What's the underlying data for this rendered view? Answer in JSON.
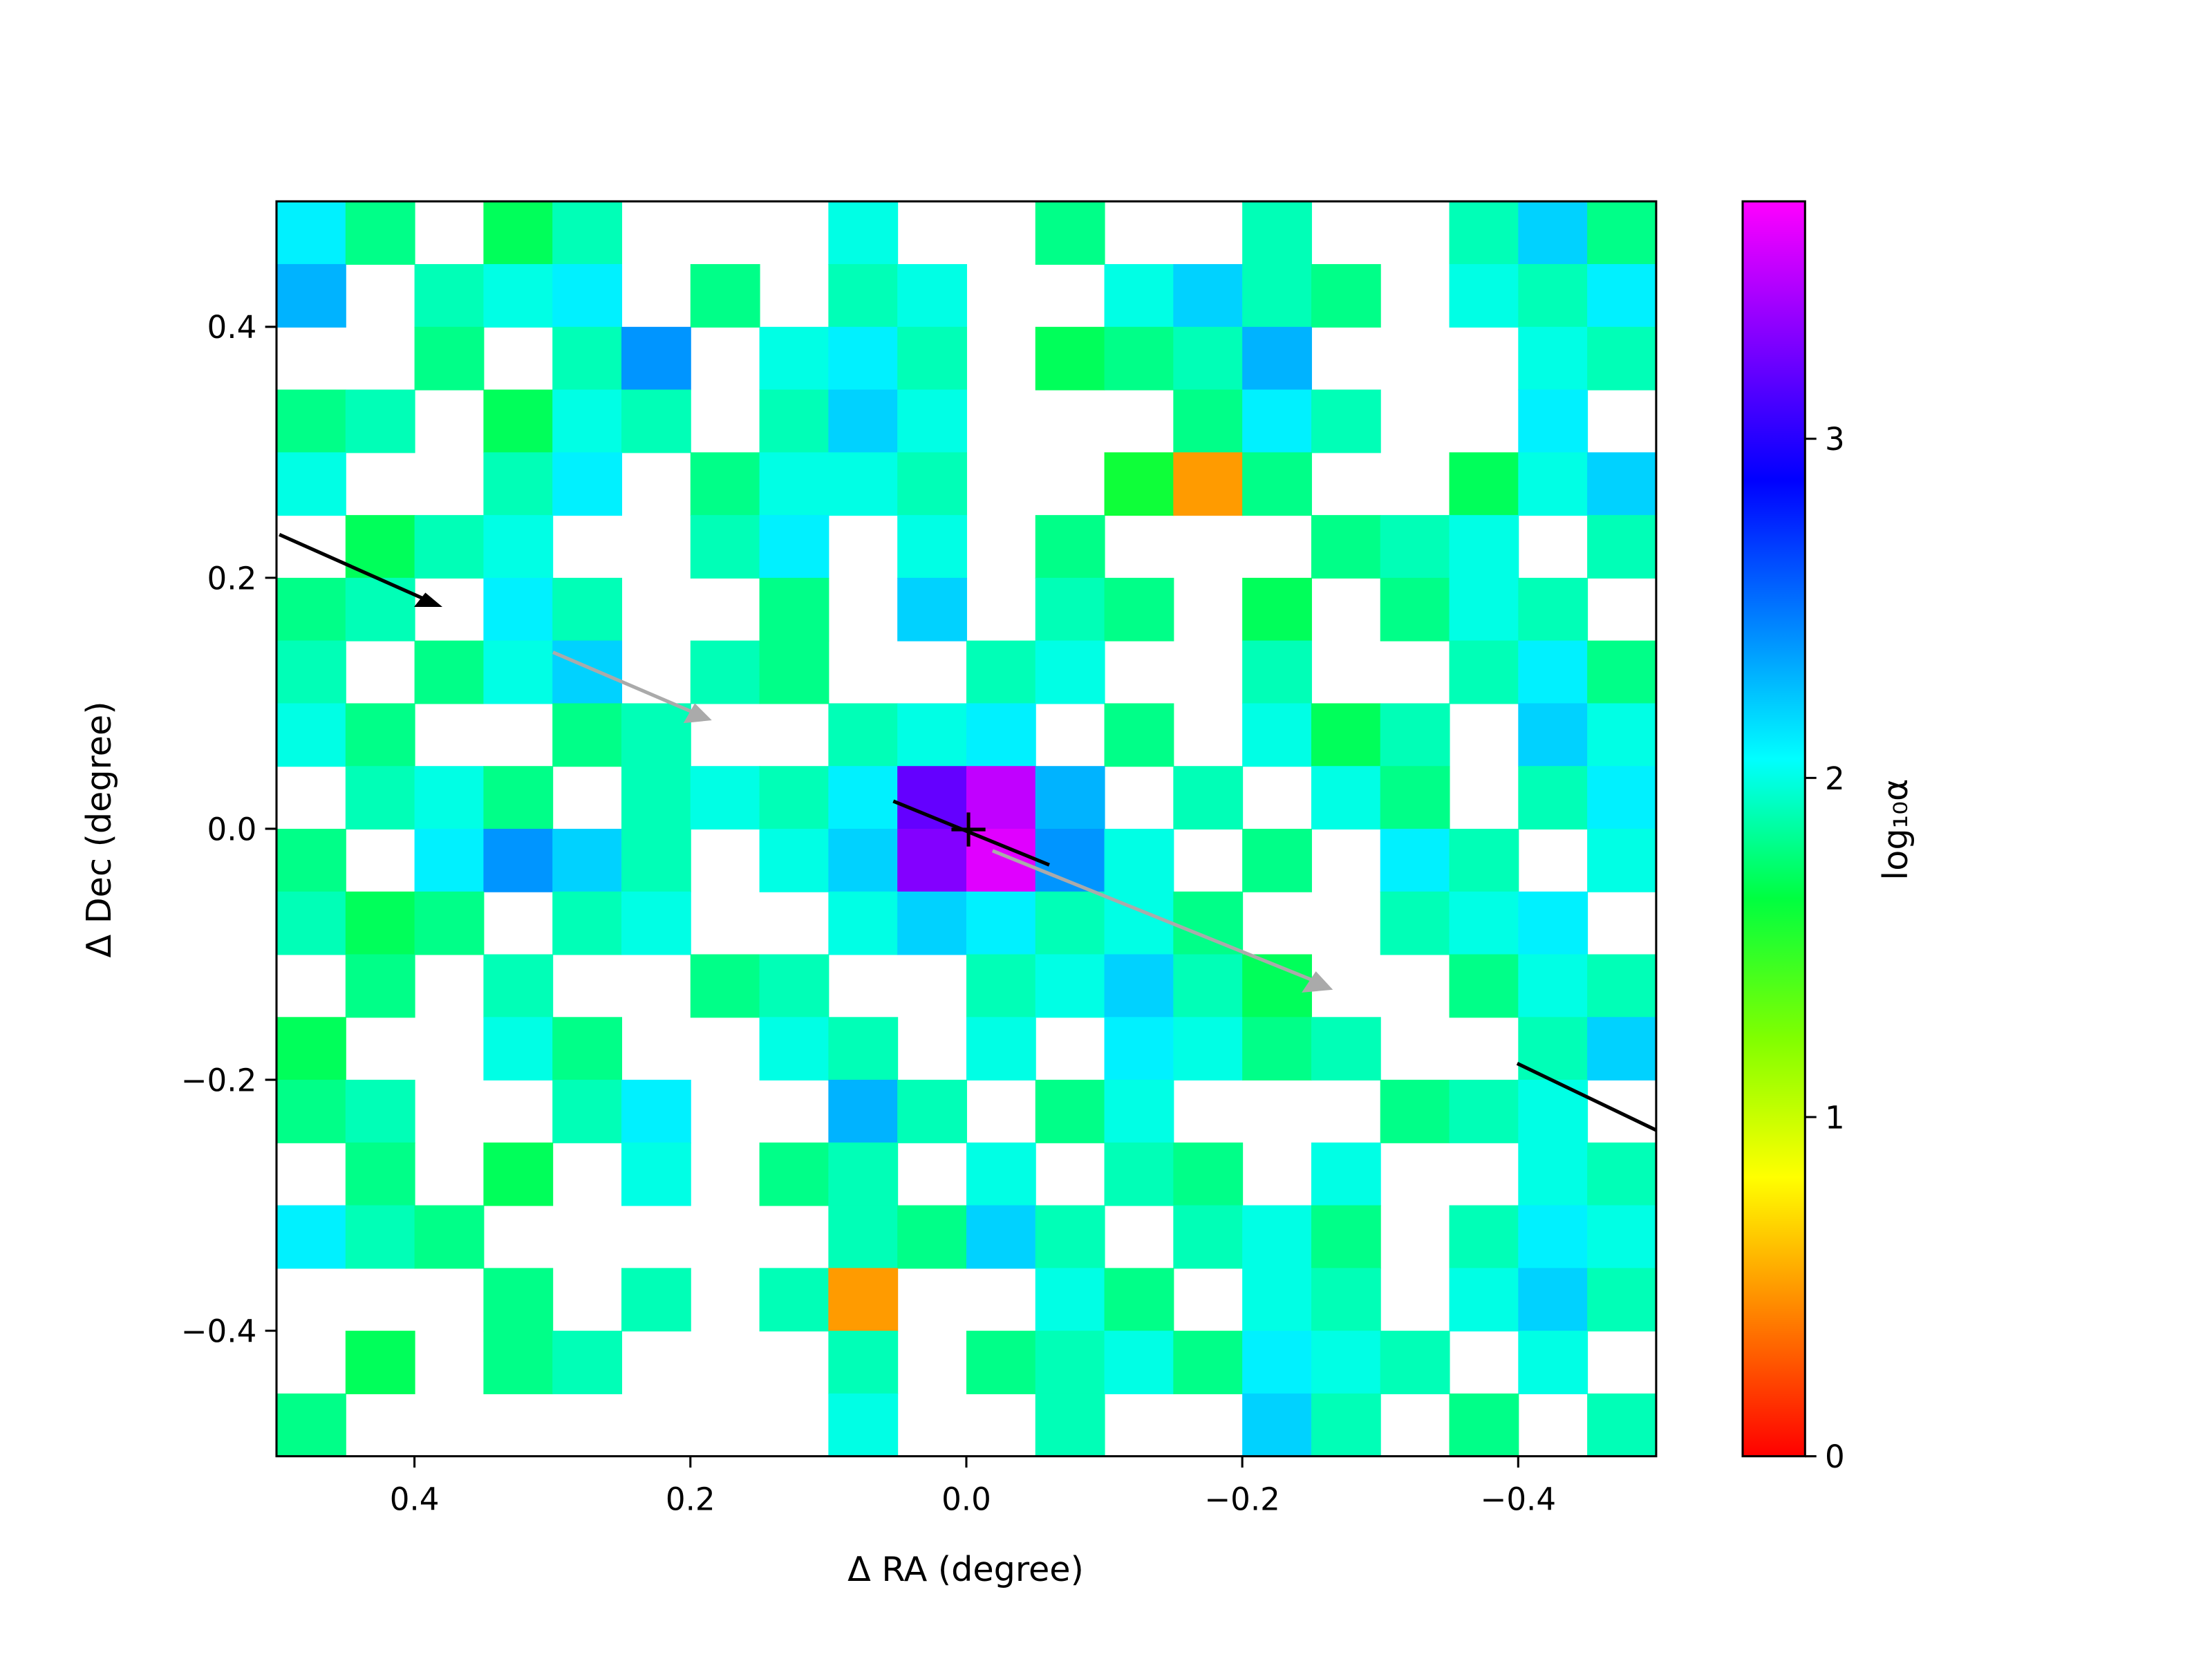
{
  "chart_data": {
    "type": "contour",
    "xlabel": "Δ RA (degree)",
    "ylabel": "Δ Dec (degree)",
    "colorbar_label": "log₁₀α",
    "xlim": [
      0.5,
      -0.5
    ],
    "ylim": [
      -0.5,
      0.5
    ],
    "xticks": [
      0.4,
      0.2,
      {
        "value": 0,
        "label": "0.0"
      },
      {
        "value": -0.2,
        "label": "−0.2"
      },
      {
        "value": -0.4,
        "label": "−0.4"
      }
    ],
    "yticks": [
      0.4,
      0.2,
      {
        "value": 0,
        "label": "0.0"
      },
      {
        "value": -0.2,
        "label": "−0.2"
      },
      {
        "value": -0.4,
        "label": "−0.4"
      }
    ],
    "clim": [
      0,
      3.7
    ],
    "cticks": [
      0,
      1,
      2,
      3
    ],
    "colormap": [
      "#ff0000",
      "#ff8000",
      "#ffff00",
      "#80ff00",
      "#00ff40",
      "#00ffff",
      "#0080ff",
      "#0000ff",
      "#8000ff",
      "#ff00ff"
    ],
    "x": [
      0.475,
      0.425,
      0.375,
      0.325,
      0.275,
      0.225,
      0.175,
      0.125,
      0.075,
      0.025,
      -0.025,
      -0.075,
      -0.125,
      -0.175,
      -0.225,
      -0.275,
      -0.325,
      -0.375,
      -0.425,
      -0.475
    ],
    "y": [
      0.475,
      0.425,
      0.375,
      0.325,
      0.275,
      0.225,
      0.175,
      0.125,
      0.075,
      0.025,
      -0.025,
      -0.075,
      -0.125,
      -0.175,
      -0.225,
      -0.275,
      -0.325,
      -0.375,
      -0.425,
      -0.475
    ],
    "values": [
      [
        2.1,
        1.8,
        null,
        1.7,
        1.9,
        null,
        null,
        null,
        2.0,
        null,
        null,
        1.8,
        null,
        null,
        1.9,
        null,
        null,
        1.9,
        2.2,
        1.8
      ],
      [
        2.3,
        null,
        1.9,
        2.0,
        2.1,
        null,
        1.8,
        null,
        1.9,
        2.0,
        null,
        null,
        2.0,
        2.2,
        1.9,
        1.8,
        null,
        2.0,
        1.9,
        2.1
      ],
      [
        null,
        null,
        1.8,
        null,
        1.9,
        2.4,
        null,
        2.0,
        2.1,
        1.9,
        null,
        1.7,
        1.8,
        1.9,
        2.3,
        null,
        null,
        null,
        2.0,
        1.9
      ],
      [
        1.8,
        1.9,
        null,
        1.7,
        2.0,
        1.9,
        null,
        1.9,
        2.2,
        2.0,
        null,
        null,
        null,
        1.8,
        2.1,
        1.9,
        null,
        null,
        2.1,
        null
      ],
      [
        2.0,
        null,
        null,
        1.9,
        2.1,
        null,
        1.8,
        2.0,
        2.0,
        1.9,
        null,
        null,
        1.6,
        0.5,
        1.8,
        null,
        null,
        1.7,
        2.0,
        2.2
      ],
      [
        null,
        1.7,
        1.9,
        2.0,
        null,
        null,
        1.9,
        2.1,
        null,
        2.0,
        null,
        1.8,
        null,
        null,
        null,
        1.8,
        1.9,
        2.0,
        null,
        1.9
      ],
      [
        1.8,
        1.9,
        null,
        2.1,
        1.9,
        null,
        null,
        1.8,
        null,
        2.2,
        null,
        1.9,
        1.8,
        null,
        1.7,
        null,
        1.8,
        2.0,
        1.9,
        null
      ],
      [
        1.9,
        null,
        1.8,
        2.0,
        2.2,
        null,
        1.9,
        1.8,
        null,
        null,
        1.9,
        2.0,
        null,
        null,
        1.9,
        null,
        null,
        1.9,
        2.1,
        1.8
      ],
      [
        2.0,
        1.8,
        null,
        null,
        1.8,
        1.9,
        null,
        null,
        1.9,
        2.0,
        2.1,
        null,
        1.8,
        null,
        2.0,
        1.7,
        1.9,
        null,
        2.2,
        2.0
      ],
      [
        null,
        1.9,
        2.0,
        1.8,
        null,
        1.9,
        2.0,
        1.9,
        2.1,
        3.2,
        3.5,
        2.3,
        null,
        1.9,
        null,
        2.0,
        1.8,
        null,
        1.9,
        2.1
      ],
      [
        1.8,
        null,
        2.1,
        2.4,
        2.2,
        1.9,
        null,
        2.0,
        2.2,
        3.3,
        3.6,
        2.4,
        2.0,
        null,
        1.8,
        null,
        2.1,
        1.9,
        null,
        2.0
      ],
      [
        1.9,
        1.7,
        1.8,
        null,
        1.9,
        2.0,
        null,
        null,
        2.0,
        2.2,
        2.1,
        1.9,
        2.0,
        1.8,
        null,
        null,
        1.9,
        2.0,
        2.1,
        null
      ],
      [
        null,
        1.8,
        null,
        1.9,
        null,
        null,
        1.8,
        1.9,
        null,
        null,
        1.9,
        2.0,
        2.2,
        1.9,
        1.7,
        null,
        null,
        1.8,
        2.0,
        1.9
      ],
      [
        1.7,
        null,
        null,
        2.0,
        1.8,
        null,
        null,
        2.0,
        1.9,
        null,
        2.0,
        null,
        2.1,
        2.0,
        1.8,
        1.9,
        null,
        null,
        1.9,
        2.2
      ],
      [
        1.8,
        1.9,
        null,
        null,
        1.9,
        2.1,
        null,
        null,
        2.3,
        1.9,
        null,
        1.8,
        2.0,
        null,
        null,
        null,
        1.8,
        1.9,
        2.0,
        null
      ],
      [
        null,
        1.8,
        null,
        1.7,
        null,
        2.0,
        null,
        1.8,
        1.9,
        null,
        2.0,
        null,
        1.9,
        1.8,
        null,
        2.0,
        null,
        null,
        2.0,
        1.9
      ],
      [
        2.1,
        1.9,
        1.8,
        null,
        null,
        null,
        null,
        null,
        1.9,
        1.8,
        2.2,
        1.9,
        null,
        1.9,
        2.0,
        1.8,
        null,
        1.9,
        2.1,
        2.0
      ],
      [
        null,
        null,
        null,
        1.8,
        null,
        1.9,
        null,
        1.9,
        0.5,
        null,
        null,
        2.0,
        1.8,
        null,
        2.0,
        1.9,
        null,
        2.0,
        2.2,
        1.9
      ],
      [
        null,
        1.7,
        null,
        1.8,
        1.9,
        null,
        null,
        null,
        1.9,
        null,
        1.8,
        1.9,
        2.0,
        1.8,
        2.1,
        2.0,
        1.9,
        null,
        2.0,
        null
      ],
      [
        1.8,
        null,
        null,
        null,
        null,
        null,
        null,
        null,
        2.0,
        null,
        null,
        1.9,
        null,
        null,
        2.2,
        1.9,
        null,
        1.8,
        null,
        1.9
      ]
    ]
  }
}
